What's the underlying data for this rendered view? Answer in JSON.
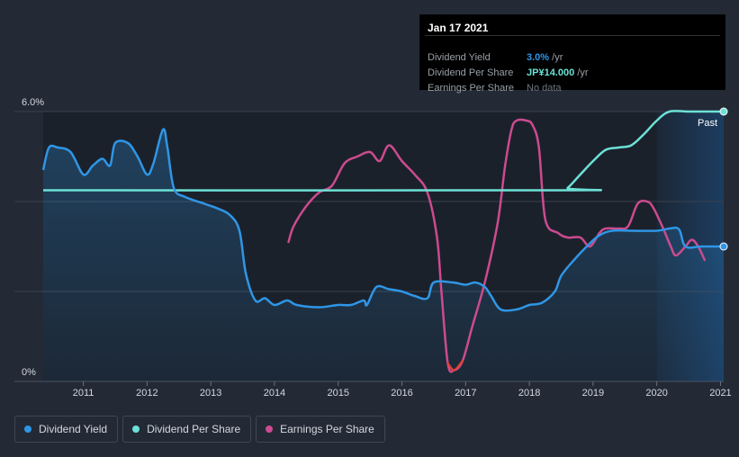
{
  "tooltip": {
    "date": "Jan 17 2021",
    "rows": [
      {
        "label": "Dividend Yield",
        "value": "3.0%",
        "unit": " /yr",
        "color": "#2f96e6"
      },
      {
        "label": "Dividend Per Share",
        "value": "JP¥14.000",
        "unit": " /yr",
        "color": "#6ce1d6"
      },
      {
        "label": "Earnings Per Share",
        "value": "No data",
        "unit": "",
        "color": "#6f7780"
      }
    ]
  },
  "legend": [
    {
      "label": "Dividend Yield",
      "color": "#2f96e6"
    },
    {
      "label": "Dividend Per Share",
      "color": "#6ce1d6"
    },
    {
      "label": "Earnings Per Share",
      "color": "#cc4b8f"
    }
  ],
  "colors": {
    "background": "#232a36",
    "plot_background": "#1b212b",
    "dividend_yield": "#2f96e6",
    "dividend_per_share": "#6ce1d6",
    "earnings_per_share": "#cc4b8f",
    "earnings_negative": "#e0403a",
    "grid": "#3a414c",
    "text": "#d4d8de"
  },
  "chart_data": {
    "type": "line",
    "title": "",
    "xlabel": "",
    "ylabel": "",
    "y_tick_labels": [
      "6.0%",
      "0%"
    ],
    "past_label": "Past",
    "x_ticks": [
      2011,
      2012,
      2013,
      2014,
      2015,
      2016,
      2017,
      2018,
      2019,
      2020,
      2021
    ],
    "x_tick_labels": [
      "2011",
      "2012",
      "2013",
      "2014",
      "2015",
      "2016",
      "2017",
      "2018",
      "2019",
      "2020",
      "2021"
    ],
    "xlim": [
      2010.37,
      2021.05
    ],
    "ylim": [
      0,
      6
    ],
    "past_region_start": 2020.0,
    "series": [
      {
        "name": "Dividend Yield",
        "unit": "%",
        "filled": true,
        "points": [
          [
            2010.37,
            4.7
          ],
          [
            2010.46,
            5.2
          ],
          [
            2010.6,
            5.2
          ],
          [
            2010.8,
            5.1
          ],
          [
            2011.0,
            4.6
          ],
          [
            2011.15,
            4.8
          ],
          [
            2011.3,
            4.95
          ],
          [
            2011.42,
            4.8
          ],
          [
            2011.5,
            5.3
          ],
          [
            2011.7,
            5.3
          ],
          [
            2011.85,
            5.0
          ],
          [
            2012.0,
            4.6
          ],
          [
            2012.1,
            4.85
          ],
          [
            2012.25,
            5.6
          ],
          [
            2012.32,
            5.2
          ],
          [
            2012.42,
            4.3
          ],
          [
            2012.6,
            4.1
          ],
          [
            2012.9,
            3.95
          ],
          [
            2013.1,
            3.85
          ],
          [
            2013.3,
            3.7
          ],
          [
            2013.45,
            3.35
          ],
          [
            2013.55,
            2.4
          ],
          [
            2013.7,
            1.8
          ],
          [
            2013.85,
            1.85
          ],
          [
            2014.0,
            1.7
          ],
          [
            2014.2,
            1.8
          ],
          [
            2014.35,
            1.7
          ],
          [
            2014.7,
            1.65
          ],
          [
            2015.0,
            1.7
          ],
          [
            2015.2,
            1.7
          ],
          [
            2015.4,
            1.8
          ],
          [
            2015.45,
            1.7
          ],
          [
            2015.6,
            2.1
          ],
          [
            2015.8,
            2.05
          ],
          [
            2016.0,
            2.0
          ],
          [
            2016.2,
            1.9
          ],
          [
            2016.4,
            1.85
          ],
          [
            2016.5,
            2.2
          ],
          [
            2016.8,
            2.2
          ],
          [
            2017.0,
            2.15
          ],
          [
            2017.15,
            2.2
          ],
          [
            2017.3,
            2.1
          ],
          [
            2017.4,
            1.9
          ],
          [
            2017.55,
            1.6
          ],
          [
            2017.8,
            1.6
          ],
          [
            2018.0,
            1.7
          ],
          [
            2018.2,
            1.75
          ],
          [
            2018.4,
            2.0
          ],
          [
            2018.5,
            2.35
          ],
          [
            2018.7,
            2.7
          ],
          [
            2018.9,
            3.0
          ],
          [
            2019.1,
            3.25
          ],
          [
            2019.3,
            3.35
          ],
          [
            2019.6,
            3.35
          ],
          [
            2020.0,
            3.35
          ],
          [
            2020.2,
            3.4
          ],
          [
            2020.35,
            3.38
          ],
          [
            2020.45,
            3.0
          ],
          [
            2020.7,
            3.0
          ],
          [
            2021.05,
            3.0
          ]
        ]
      },
      {
        "name": "Dividend Per Share",
        "unit": "JP¥",
        "filled": false,
        "points": [
          [
            2010.37,
            4.25
          ],
          [
            2018.5,
            4.25
          ],
          [
            2018.6,
            4.3
          ],
          [
            2018.8,
            4.6
          ],
          [
            2019.0,
            4.9
          ],
          [
            2019.2,
            5.15
          ],
          [
            2019.4,
            5.2
          ],
          [
            2019.6,
            5.25
          ],
          [
            2019.8,
            5.5
          ],
          [
            2020.0,
            5.8
          ],
          [
            2020.2,
            6.0
          ],
          [
            2020.5,
            6.0
          ],
          [
            2021.05,
            6.0
          ]
        ]
      },
      {
        "name": "Earnings Per Share",
        "unit": "JP¥",
        "filled": false,
        "negative_range": [
          2016.72,
          2016.95
        ],
        "points": [
          [
            2014.22,
            3.1
          ],
          [
            2014.3,
            3.45
          ],
          [
            2014.5,
            3.9
          ],
          [
            2014.7,
            4.2
          ],
          [
            2014.9,
            4.35
          ],
          [
            2015.1,
            4.85
          ],
          [
            2015.3,
            5.0
          ],
          [
            2015.5,
            5.1
          ],
          [
            2015.65,
            4.9
          ],
          [
            2015.8,
            5.25
          ],
          [
            2016.0,
            4.9
          ],
          [
            2016.2,
            4.6
          ],
          [
            2016.4,
            4.2
          ],
          [
            2016.55,
            3.2
          ],
          [
            2016.62,
            2.0
          ],
          [
            2016.72,
            0.4
          ],
          [
            2016.82,
            0.25
          ],
          [
            2016.95,
            0.45
          ],
          [
            2017.1,
            1.2
          ],
          [
            2017.3,
            2.2
          ],
          [
            2017.5,
            3.5
          ],
          [
            2017.62,
            4.8
          ],
          [
            2017.72,
            5.6
          ],
          [
            2017.8,
            5.8
          ],
          [
            2017.95,
            5.8
          ],
          [
            2018.05,
            5.7
          ],
          [
            2018.15,
            5.2
          ],
          [
            2018.25,
            3.6
          ],
          [
            2018.45,
            3.3
          ],
          [
            2018.6,
            3.2
          ],
          [
            2018.8,
            3.2
          ],
          [
            2018.95,
            3.0
          ],
          [
            2019.1,
            3.3
          ],
          [
            2019.2,
            3.4
          ],
          [
            2019.4,
            3.4
          ],
          [
            2019.55,
            3.45
          ],
          [
            2019.7,
            3.95
          ],
          [
            2019.85,
            4.0
          ],
          [
            2019.95,
            3.85
          ],
          [
            2020.1,
            3.4
          ],
          [
            2020.22,
            3.0
          ],
          [
            2020.3,
            2.8
          ],
          [
            2020.45,
            3.0
          ],
          [
            2020.55,
            3.15
          ],
          [
            2020.65,
            3.0
          ],
          [
            2020.75,
            2.7
          ]
        ]
      }
    ]
  }
}
